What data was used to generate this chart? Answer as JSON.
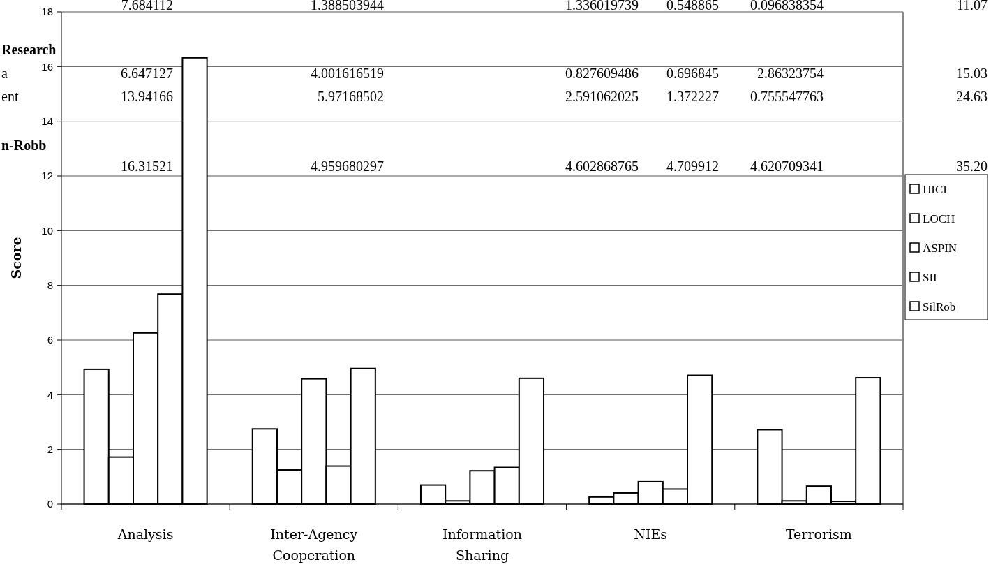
{
  "chart_data": {
    "type": "bar",
    "ylabel": "Score",
    "categories": [
      "Analysis",
      "Inter-Agency Cooperation",
      "Information Sharing",
      "NIEs",
      "Terrorism"
    ],
    "series": [
      {
        "name": "IJICI",
        "color": "#ffffff",
        "values": [
          4.93,
          2.75,
          0.7,
          0.26,
          2.72
        ]
      },
      {
        "name": "LOCH",
        "color": "#ffffff",
        "values": [
          1.72,
          1.25,
          0.12,
          0.41,
          0.12
        ]
      },
      {
        "name": "ASPIN",
        "color": "#ffffff",
        "values": [
          6.26,
          4.58,
          1.22,
          0.82,
          0.66
        ]
      },
      {
        "name": "SII",
        "color": "#ffffff",
        "values": [
          7.68,
          1.39,
          1.34,
          0.55,
          0.1
        ]
      },
      {
        "name": "SilRob",
        "color": "#ffffff",
        "values": [
          16.32,
          4.96,
          4.6,
          4.71,
          4.62
        ]
      }
    ],
    "ylim": [
      0,
      18
    ],
    "yticks": [
      0,
      2,
      4,
      6,
      8,
      10,
      12,
      14,
      16,
      18
    ],
    "grid": "y",
    "legend": "right",
    "annotations": [
      "Research",
      "a",
      "ent",
      "n-Robb",
      "7.684112",
      "1.388503944",
      "1.336019739",
      "0.548865",
      "0.096838354",
      "11.07",
      "6.647127",
      "4.001616519",
      "0.827609486",
      "0.696845",
      "2.86323754",
      "15.03",
      "13.94166",
      "5.97168502",
      "2.591062025",
      "1.372227",
      "0.755547763",
      "24.63",
      "16.31521",
      "4.959680297",
      "4.602868765",
      "4.709912",
      "4.620709341",
      "35.20"
    ]
  }
}
